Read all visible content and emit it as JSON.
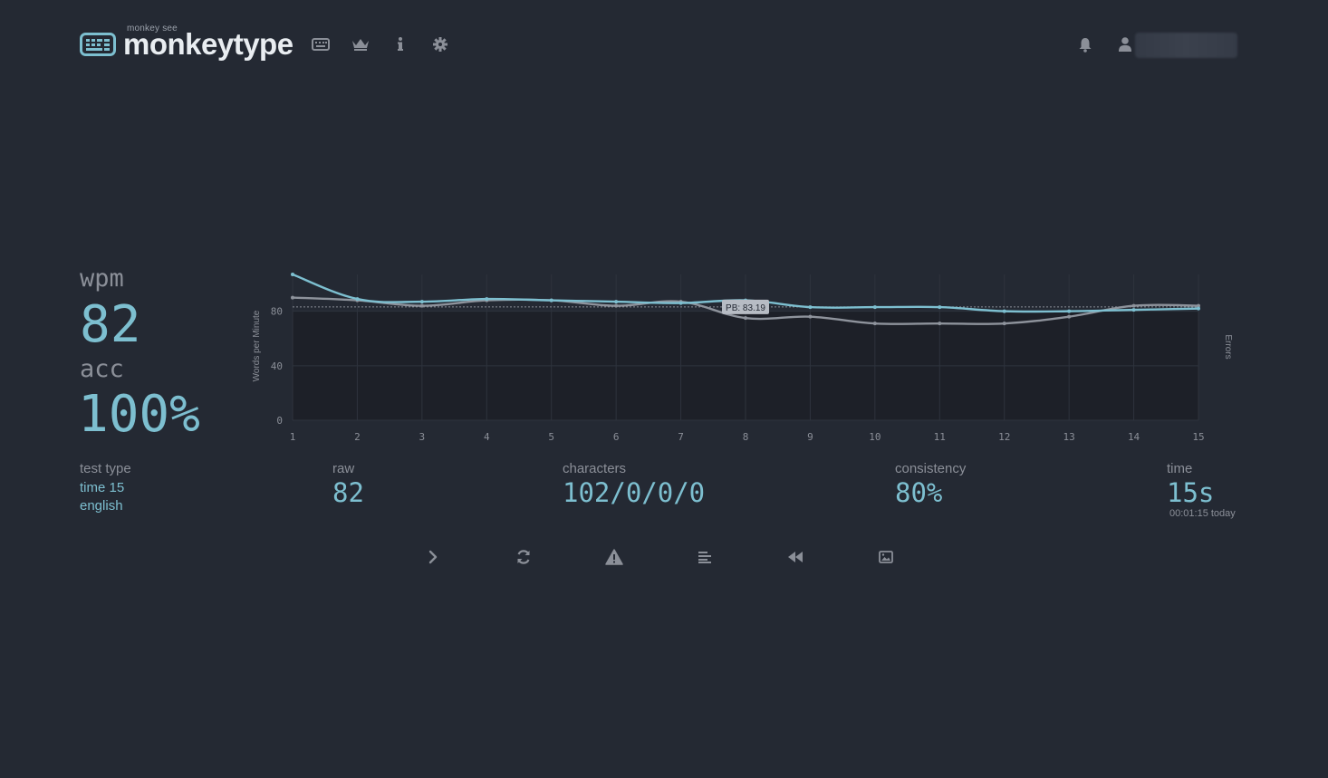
{
  "header": {
    "logo_sub": "monkey see",
    "logo_text": "monkeytype",
    "nav_icons": [
      "keyboard-icon",
      "crown-icon",
      "info-icon",
      "gear-icon"
    ],
    "right_icons": [
      "bell-icon",
      "user-icon"
    ]
  },
  "result": {
    "wpm_label": "wpm",
    "wpm_value": "82",
    "acc_label": "acc",
    "acc_value": "100%"
  },
  "stats": {
    "test_type_label": "test type",
    "test_type_line1": "time 15",
    "test_type_line2": "english",
    "raw_label": "raw",
    "raw_value": "82",
    "characters_label": "characters",
    "characters_value": "102/0/0/0",
    "consistency_label": "consistency",
    "consistency_value": "80%",
    "time_label": "time",
    "time_value": "15s",
    "time_sub": "00:01:15 today"
  },
  "actions": [
    "chevron-right-icon",
    "restart-icon",
    "warning-icon",
    "align-left-icon",
    "rewind-icon",
    "image-icon"
  ],
  "colors": {
    "background": "#242933",
    "plot_background": "#1d2028",
    "accent": "#7dbfd0",
    "text": "#8b8f98",
    "logo_text": "#e9edf1",
    "raw_line": "#8e939c"
  },
  "chart_data": {
    "type": "line",
    "x": [
      1,
      2,
      3,
      4,
      5,
      6,
      7,
      8,
      9,
      10,
      11,
      12,
      13,
      14,
      15
    ],
    "series": [
      {
        "values": [
          107,
          89,
          87,
          89,
          88,
          87,
          86,
          88,
          83,
          83,
          83,
          80,
          80,
          81,
          82
        ]
      },
      {
        "values": [
          90,
          88,
          84,
          88,
          88,
          84,
          87,
          75,
          76,
          71,
          71,
          71,
          76,
          84,
          84
        ]
      }
    ],
    "ylabel": "Words per Minute",
    "y2label": "Errors",
    "yticks": [
      "0",
      "40",
      "80"
    ],
    "ylim": [
      0,
      107
    ],
    "annotation": "PB: 83.19",
    "pb_value": 83.19,
    "grid": true
  }
}
